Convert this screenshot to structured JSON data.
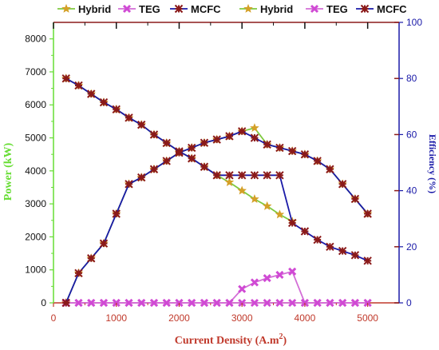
{
  "chart_data": {
    "type": "line",
    "xlabel": "Current Density (A.m",
    "xlabel_sup": "2",
    "xlabel_close": ")",
    "ylabel_left": "Power (kW)",
    "ylabel_right": "Efficiency (%)",
    "xlim": [
      0,
      5500
    ],
    "ylim_left": [
      0,
      8500
    ],
    "ylim_right": [
      0,
      100
    ],
    "x_ticks": [
      0,
      1000,
      2000,
      3000,
      4000,
      5000
    ],
    "x_tick_labels": [
      "0",
      "1000",
      "2000",
      "3000",
      "4000",
      "5000"
    ],
    "y_left_ticks": [
      0,
      1000,
      2000,
      3000,
      4000,
      5000,
      6000,
      7000,
      8000
    ],
    "y_left_tick_labels": [
      "0",
      "1000",
      "2000",
      "3000",
      "4000",
      "5000",
      "6000",
      "7000",
      "8000"
    ],
    "y_right_ticks": [
      0,
      20,
      40,
      60,
      80,
      100
    ],
    "y_right_tick_labels": [
      "0",
      "20",
      "40",
      "60",
      "80",
      "100"
    ],
    "grid": false,
    "legend_position": "top",
    "colors": {
      "left_axis": "#66dd33",
      "right_axis": "#1a1aa8",
      "bottom_axis": "#c0392b",
      "frame_top": "#8b1a1a",
      "hybrid_line": "#7fc93f",
      "hybrid_marker": "#d4a028",
      "teg_line": "#d36ed6",
      "teg_marker": "#d04ad4",
      "mcfc_line": "#1a1aa8",
      "mcfc_marker": "#8b1a1a",
      "right_x_ticks": "#8b1a1a"
    },
    "series": [
      {
        "name": "Hybrid",
        "axis": "left",
        "line": "hybrid_line",
        "marker": "hybrid_marker",
        "symbol": "star",
        "x": [
          200,
          400,
          600,
          800,
          1000,
          1200,
          1400,
          1600,
          1800,
          2000,
          2200,
          2400,
          2600,
          2800,
          3000,
          3200,
          3400,
          3600,
          3800,
          4000,
          4200,
          4400,
          4600,
          4800,
          5000
        ],
        "values": [
          0,
          900,
          1350,
          1800,
          2700,
          3600,
          3800,
          4050,
          4300,
          4550,
          4700,
          4850,
          4950,
          5050,
          5200,
          5300,
          4800,
          4700,
          4600,
          4500,
          4300,
          4050,
          3600,
          3150,
          2700
        ]
      },
      {
        "name": "TEG",
        "axis": "left",
        "line": "teg_line",
        "marker": "teg_marker",
        "symbol": "x",
        "x": [
          200,
          400,
          600,
          800,
          1000,
          1200,
          1400,
          1600,
          1800,
          2000,
          2200,
          2400,
          2600,
          2800,
          3000,
          3200,
          3400,
          3600,
          3800,
          4000,
          4200,
          4400,
          4600,
          4800,
          5000
        ],
        "values": [
          0,
          0,
          0,
          0,
          0,
          0,
          0,
          0,
          0,
          0,
          0,
          0,
          0,
          0,
          420,
          620,
          750,
          850,
          950,
          0,
          0,
          0,
          0,
          0,
          0
        ]
      },
      {
        "name": "MCFC",
        "axis": "left",
        "line": "mcfc_line",
        "marker": "mcfc_marker",
        "symbol": "star",
        "x": [
          200,
          400,
          600,
          800,
          1000,
          1200,
          1400,
          1600,
          1800,
          2000,
          2200,
          2400,
          2600,
          2800,
          3000,
          3200,
          3400,
          3600,
          3800,
          4000,
          4200,
          4400,
          4600,
          4800,
          5000
        ],
        "values": [
          0,
          900,
          1350,
          1800,
          2700,
          3600,
          3800,
          4050,
          4300,
          4550,
          4700,
          4850,
          4950,
          5050,
          5200,
          5000,
          4800,
          4700,
          4600,
          4500,
          4300,
          4050,
          3600,
          3150,
          2700
        ]
      },
      {
        "name": "Hybrid",
        "axis": "right",
        "line": "hybrid_line",
        "marker": "hybrid_marker",
        "symbol": "star",
        "x": [
          200,
          400,
          600,
          800,
          1000,
          1200,
          1400,
          1600,
          1800,
          2000,
          2200,
          2400,
          2600,
          2800,
          3000,
          3200,
          3400,
          3600,
          3800
        ],
        "values": [
          80,
          77.5,
          74.5,
          71.5,
          69,
          66,
          63.5,
          60,
          57,
          54,
          51.5,
          48.5,
          45.5,
          43,
          40,
          37,
          34.5,
          31.5,
          29
        ]
      },
      {
        "name": "TEG",
        "axis": "right",
        "line": "teg_line",
        "marker": "teg_marker",
        "symbol": "x",
        "x": [
          200,
          400,
          600,
          800,
          1000,
          1200,
          1400,
          1600,
          1800,
          2000,
          2200,
          2400,
          2600,
          2800,
          3000,
          3200,
          3400,
          3600,
          3800,
          4000,
          4200,
          4400,
          4600,
          4800,
          5000
        ],
        "values": [
          0,
          0,
          0,
          0,
          0,
          0,
          0,
          0,
          0,
          0,
          0,
          0,
          0,
          0,
          0,
          0,
          0,
          0,
          0,
          0,
          0,
          0,
          0,
          0,
          0
        ]
      },
      {
        "name": "MCFC",
        "axis": "right",
        "line": "mcfc_line",
        "marker": "mcfc_marker",
        "symbol": "star",
        "x": [
          200,
          400,
          600,
          800,
          1000,
          1200,
          1400,
          1600,
          1800,
          2000,
          2200,
          2400,
          2600,
          2800,
          3000,
          3200,
          3400,
          3600,
          3800,
          4000,
          4200,
          4400,
          4600,
          4800,
          5000
        ],
        "values": [
          80,
          77.5,
          74.5,
          71.5,
          69,
          66,
          63.5,
          60,
          57,
          54,
          51.5,
          48.5,
          45.5,
          45.5,
          45.5,
          45.5,
          45.5,
          45.5,
          28.5,
          25.5,
          22.5,
          20,
          18.5,
          17,
          15
        ]
      }
    ]
  }
}
